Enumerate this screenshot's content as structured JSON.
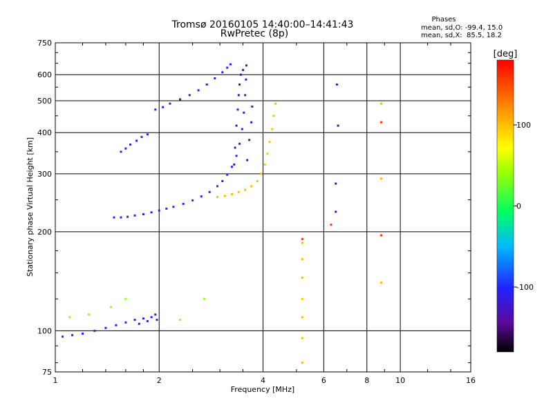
{
  "chart_data": {
    "type": "scatter",
    "title": "Tromsø 20160105 14:40:00–14:41:43",
    "subtitle": "RwPretec (8p)",
    "stats": {
      "heading": "Phases",
      "line_o": "mean, sd,O: -99.4, 15.0",
      "line_x": "mean, sd,X:  85.5, 18.2"
    },
    "xlabel": "Frequency [MHz]",
    "ylabel": "Stationary phase Virtual Height [km]",
    "x_scale": "log2",
    "y_scale": "log",
    "xlim": [
      1,
      16
    ],
    "ylim": [
      75,
      750
    ],
    "x_ticks": [
      1,
      2,
      4,
      6,
      8,
      10,
      16
    ],
    "x_tick_labels": [
      "1",
      "2",
      "4",
      "6",
      "8",
      "10",
      "16"
    ],
    "y_ticks": [
      75,
      100,
      200,
      300,
      400,
      500,
      600,
      750
    ],
    "y_tick_labels": [
      "75",
      "100",
      "200",
      "300",
      "400",
      "500",
      "600",
      "750"
    ],
    "grid": true,
    "colorbar": {
      "label": "[deg]",
      "range": [
        -180,
        180
      ],
      "ticks": [
        100,
        0,
        -100
      ],
      "tick_labels": [
        "100",
        "0",
        "-100"
      ]
    },
    "colors": {
      "ordinary": "#2a36e0",
      "extraordinary": "#e8e81a",
      "background": "#ffffff",
      "grid": "#000000"
    },
    "series": [
      {
        "phase": -100,
        "points": [
          [
            1.48,
            221
          ],
          [
            1.55,
            221
          ],
          [
            1.62,
            222
          ],
          [
            1.7,
            224
          ],
          [
            1.8,
            226
          ],
          [
            1.9,
            229
          ],
          [
            2.0,
            232
          ],
          [
            2.1,
            235
          ],
          [
            2.2,
            238
          ],
          [
            2.35,
            243
          ],
          [
            2.5,
            249
          ],
          [
            2.65,
            256
          ],
          [
            2.8,
            264
          ],
          [
            2.95,
            275
          ],
          [
            3.05,
            285
          ],
          [
            3.15,
            298
          ],
          [
            3.25,
            315
          ],
          [
            3.35,
            340
          ],
          [
            3.42,
            370
          ],
          [
            3.48,
            410
          ],
          [
            3.52,
            460
          ],
          [
            3.55,
            520
          ],
          [
            3.57,
            580
          ],
          [
            3.58,
            640
          ],
          [
            1.95,
            470
          ],
          [
            2.05,
            478
          ],
          [
            2.15,
            490
          ],
          [
            2.3,
            505
          ],
          [
            2.45,
            520
          ],
          [
            2.6,
            538
          ],
          [
            2.75,
            560
          ],
          [
            2.9,
            585
          ],
          [
            3.05,
            610
          ],
          [
            3.15,
            630
          ],
          [
            3.22,
            645
          ],
          [
            1.55,
            350
          ],
          [
            1.6,
            358
          ],
          [
            1.65,
            368
          ],
          [
            1.72,
            378
          ],
          [
            1.78,
            388
          ],
          [
            1.85,
            395
          ],
          [
            1.05,
            96
          ],
          [
            1.12,
            97
          ],
          [
            1.2,
            98
          ],
          [
            1.3,
            100
          ],
          [
            1.4,
            102
          ],
          [
            1.5,
            104
          ],
          [
            1.6,
            106
          ],
          [
            1.7,
            108
          ],
          [
            1.8,
            109
          ],
          [
            1.9,
            110
          ],
          [
            1.97,
            108
          ]
        ]
      },
      {
        "phase": 100,
        "points": [
          [
            2.95,
            255
          ],
          [
            3.1,
            257
          ],
          [
            3.25,
            260
          ],
          [
            3.4,
            264
          ],
          [
            3.55,
            268
          ],
          [
            3.7,
            275
          ],
          [
            3.85,
            285
          ],
          [
            3.95,
            300
          ],
          [
            4.05,
            320
          ],
          [
            4.12,
            345
          ],
          [
            4.18,
            375
          ],
          [
            4.25,
            410
          ],
          [
            4.3,
            450
          ],
          [
            4.35,
            490
          ],
          [
            5.2,
            80
          ],
          [
            5.2,
            95
          ],
          [
            5.2,
            110
          ],
          [
            5.2,
            125
          ],
          [
            5.2,
            145
          ],
          [
            5.2,
            165
          ],
          [
            5.2,
            185
          ],
          [
            8.8,
            290
          ],
          [
            8.8,
            490
          ],
          [
            8.8,
            140
          ]
        ]
      },
      {
        "phase": -130,
        "points": [
          [
            3.3,
            320
          ],
          [
            3.32,
            360
          ],
          [
            3.35,
            420
          ],
          [
            3.38,
            470
          ],
          [
            3.4,
            520
          ],
          [
            3.42,
            560
          ],
          [
            3.45,
            600
          ],
          [
            3.5,
            620
          ],
          [
            3.6,
            330
          ],
          [
            3.65,
            380
          ],
          [
            3.7,
            430
          ],
          [
            3.72,
            480
          ],
          [
            1.75,
            105
          ],
          [
            1.85,
            107
          ],
          [
            1.95,
            112
          ],
          [
            6.5,
            230
          ],
          [
            6.5,
            280
          ],
          [
            6.6,
            420
          ],
          [
            6.55,
            560
          ]
        ]
      },
      {
        "phase": 160,
        "points": [
          [
            5.2,
            190
          ],
          [
            6.3,
            210
          ],
          [
            8.8,
            195
          ],
          [
            8.8,
            430
          ]
        ]
      },
      {
        "phase": 40,
        "points": [
          [
            1.1,
            110
          ],
          [
            1.25,
            112
          ],
          [
            1.45,
            118
          ],
          [
            1.6,
            125
          ],
          [
            2.3,
            108
          ],
          [
            2.7,
            125
          ]
        ]
      }
    ]
  }
}
